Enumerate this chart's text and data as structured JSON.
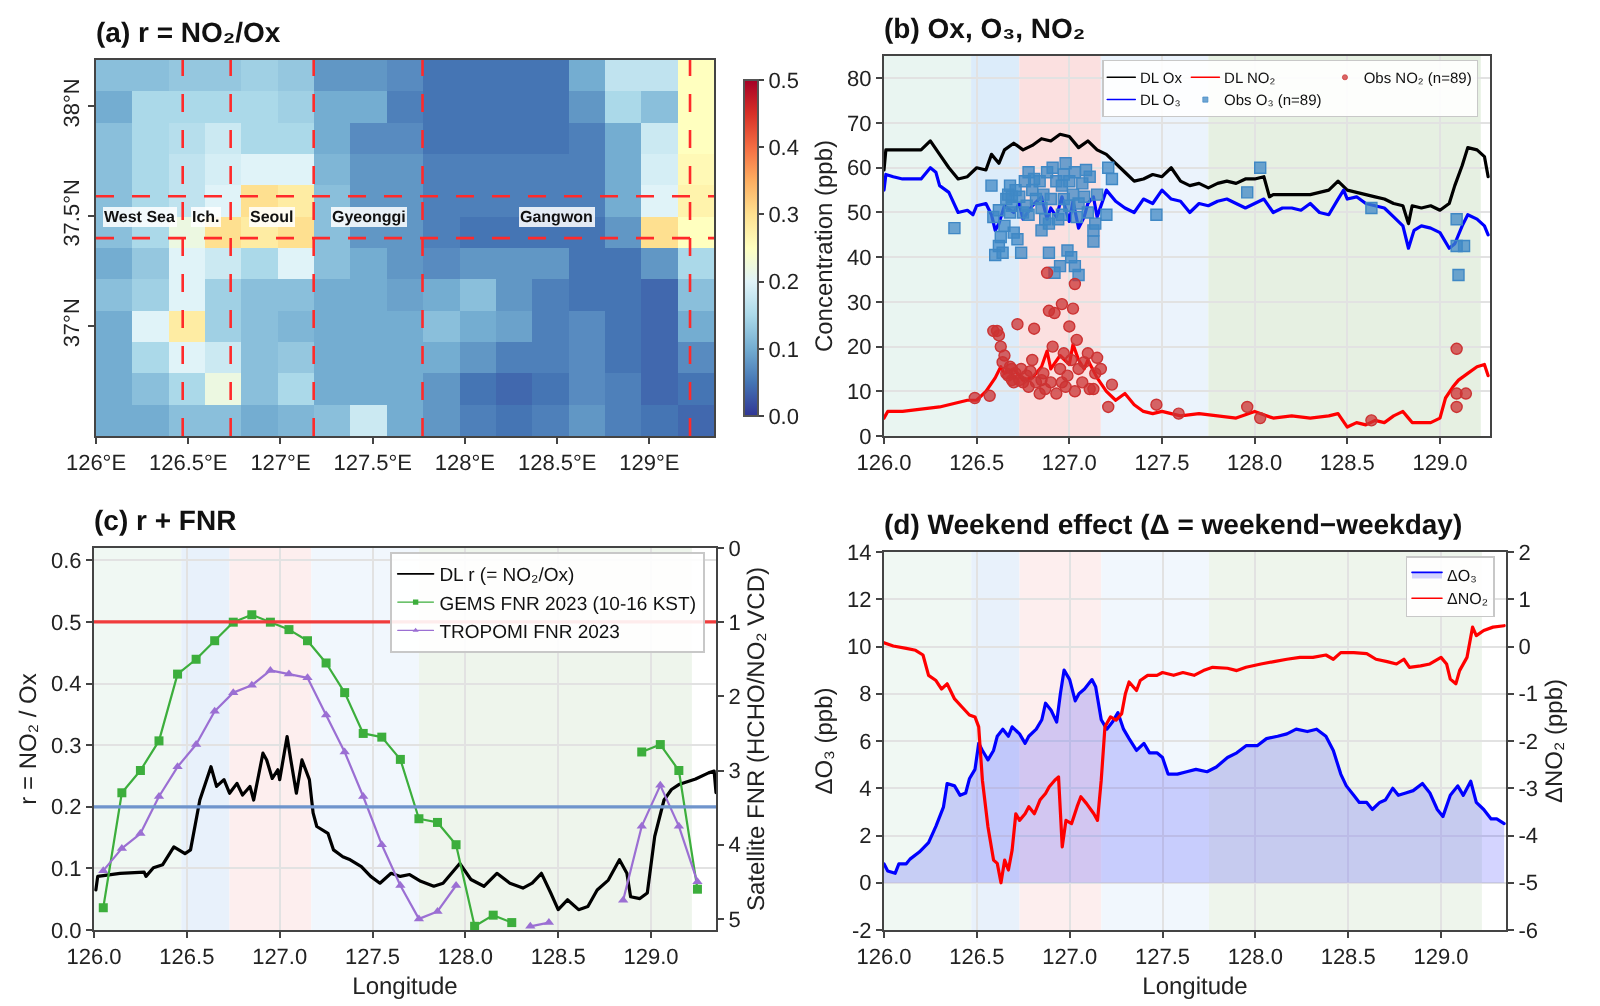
{
  "chart_data": [
    {
      "type": "heatmap",
      "title": "(a) r = NO₂/Ox",
      "cells": [
        [
          0.12,
          0.12,
          0.13,
          0.13,
          0.14,
          0.13,
          0.08,
          0.08,
          0.07,
          0.05,
          0.05,
          0.05,
          0.05,
          0.1,
          0.17,
          0.17,
          0.25
        ],
        [
          0.1,
          0.15,
          0.15,
          0.15,
          0.15,
          0.14,
          0.1,
          0.1,
          0.06,
          0.05,
          0.05,
          0.05,
          0.05,
          0.08,
          0.15,
          0.12,
          0.25
        ],
        [
          0.12,
          0.15,
          0.16,
          0.18,
          0.15,
          0.15,
          0.1,
          0.07,
          0.07,
          0.05,
          0.05,
          0.05,
          0.05,
          0.06,
          0.1,
          0.18,
          0.25
        ],
        [
          0.12,
          0.15,
          0.17,
          0.19,
          0.2,
          0.2,
          0.11,
          0.08,
          0.08,
          0.06,
          0.06,
          0.06,
          0.06,
          0.06,
          0.1,
          0.19,
          0.26
        ],
        [
          0.12,
          0.15,
          0.17,
          0.2,
          0.3,
          0.28,
          0.12,
          0.08,
          0.08,
          0.06,
          0.06,
          0.06,
          0.06,
          0.06,
          0.1,
          0.2,
          0.27
        ],
        [
          0.12,
          0.15,
          0.22,
          0.3,
          0.28,
          0.3,
          0.12,
          0.08,
          0.08,
          0.06,
          0.05,
          0.05,
          0.05,
          0.05,
          0.08,
          0.3,
          0.25
        ],
        [
          0.1,
          0.13,
          0.2,
          0.18,
          0.15,
          0.2,
          0.12,
          0.1,
          0.08,
          0.07,
          0.08,
          0.08,
          0.08,
          0.05,
          0.05,
          0.08,
          0.15
        ],
        [
          0.12,
          0.14,
          0.2,
          0.14,
          0.12,
          0.12,
          0.1,
          0.1,
          0.09,
          0.1,
          0.12,
          0.08,
          0.06,
          0.05,
          0.05,
          0.04,
          0.12
        ],
        [
          0.1,
          0.2,
          0.28,
          0.14,
          0.12,
          0.11,
          0.1,
          0.1,
          0.1,
          0.12,
          0.1,
          0.09,
          0.06,
          0.07,
          0.05,
          0.04,
          0.1
        ],
        [
          0.1,
          0.15,
          0.2,
          0.18,
          0.12,
          0.13,
          0.1,
          0.1,
          0.1,
          0.1,
          0.08,
          0.06,
          0.06,
          0.07,
          0.05,
          0.04,
          0.07
        ],
        [
          0.1,
          0.12,
          0.15,
          0.22,
          0.12,
          0.15,
          0.1,
          0.1,
          0.1,
          0.08,
          0.05,
          0.04,
          0.05,
          0.07,
          0.06,
          0.04,
          0.05
        ],
        [
          0.1,
          0.1,
          0.12,
          0.12,
          0.1,
          0.11,
          0.12,
          0.18,
          0.1,
          0.08,
          0.06,
          0.05,
          0.06,
          0.08,
          0.06,
          0.05,
          0.04
        ]
      ],
      "xlim": [
        126.0,
        129.35
      ],
      "ylim": [
        36.5,
        38.21
      ],
      "xticks": [
        {
          "value": 126,
          "label": "126°E"
        },
        {
          "value": 126.5,
          "label": "126.5°E"
        },
        {
          "value": 127,
          "label": "127°E"
        },
        {
          "value": 127.5,
          "label": "127.5°E"
        },
        {
          "value": 128,
          "label": "128°E"
        },
        {
          "value": 128.5,
          "label": "128.5°E"
        },
        {
          "value": 129,
          "label": "129°E"
        }
      ],
      "yticks": [
        {
          "value": 37,
          "label": "37°N"
        },
        {
          "value": 37.5,
          "label": "37.5°N"
        },
        {
          "value": 38,
          "label": "38°N"
        }
      ],
      "clim": [
        0,
        0.5
      ],
      "cticks": [
        {
          "value": 0,
          "label": "0.0"
        },
        0.1,
        0.2,
        0.3,
        0.4,
        0.5
      ],
      "ref_lines": [
        {
          "axis": "x",
          "value": 126.47,
          "color": "#ff2a2a",
          "line_style": "dashed"
        },
        {
          "axis": "x",
          "value": 126.73,
          "color": "#ff2a2a",
          "line_style": "dashed"
        },
        {
          "axis": "x",
          "value": 127.18,
          "color": "#ff2a2a",
          "line_style": "dashed"
        },
        {
          "axis": "x",
          "value": 127.77,
          "color": "#ff2a2a",
          "line_style": "dashed"
        },
        {
          "axis": "x",
          "value": 129.22,
          "color": "#ff2a2a",
          "line_style": "dashed"
        },
        {
          "axis": "y",
          "value": 37.4,
          "color": "#ff2a2a",
          "line_style": "dashed"
        },
        {
          "axis": "y",
          "value": 37.59,
          "color": "#ff2a2a",
          "line_style": "dashed"
        }
      ],
      "annotations": [
        "West Sea",
        "Ich.",
        "Seoul",
        "Gyeonggi",
        "Gangwon"
      ]
    },
    {
      "type": "line",
      "title": "(b) Ox, O₃, NO₂",
      "ylabel": "Concentration (ppb)",
      "xlim": [
        126.0,
        129.27
      ],
      "ylim": [
        0,
        85
      ],
      "xticks": [
        {
          "value": 126,
          "label": "126.0"
        },
        126.5,
        {
          "value": 127,
          "label": "127.0"
        },
        127.5,
        {
          "value": 128,
          "label": "128.0"
        },
        128.5,
        {
          "value": 129,
          "label": "129.0"
        }
      ],
      "yticks": [
        0,
        10,
        20,
        30,
        40,
        50,
        60,
        70,
        80
      ],
      "grid": true,
      "legend": "top right",
      "bands": [
        {
          "axis": "x",
          "from": 126.0,
          "to": 126.47,
          "color": "#e9f5f1"
        },
        {
          "axis": "x",
          "from": 126.47,
          "to": 126.73,
          "color": "#dcecfa"
        },
        {
          "axis": "x",
          "from": 126.73,
          "to": 127.17,
          "color": "#fbe0e0"
        },
        {
          "axis": "x",
          "from": 127.17,
          "to": 127.75,
          "color": "#ebf3fc"
        },
        {
          "axis": "x",
          "from": 127.75,
          "to": 129.22,
          "color": "#e6f0e2"
        }
      ],
      "series": [
        {
          "name": "DL Ox",
          "color": "#000000",
          "x": [
            126.0,
            126.01,
            126.1,
            126.2,
            126.25,
            126.3,
            126.35,
            126.4,
            126.45,
            126.5,
            126.55,
            126.58,
            126.62,
            126.65,
            126.7,
            126.75,
            126.8,
            126.85,
            126.9,
            126.95,
            127.0,
            127.05,
            127.1,
            127.15,
            127.2,
            127.25,
            127.3,
            127.35,
            127.4,
            127.45,
            127.5,
            127.55,
            127.6,
            127.65,
            127.7,
            127.75,
            127.8,
            127.85,
            127.9,
            127.95,
            128.0,
            128.05,
            128.08,
            128.1,
            128.2,
            128.3,
            128.4,
            128.45,
            128.5,
            128.55,
            128.6,
            128.65,
            128.7,
            128.75,
            128.8,
            128.83,
            128.85,
            128.9,
            128.95,
            129.0,
            129.05,
            129.08,
            129.12,
            129.15,
            129.2,
            129.24,
            129.26
          ],
          "values": [
            59.5,
            64,
            64,
            64,
            66,
            63,
            60,
            57.5,
            58,
            60,
            59.5,
            63,
            61,
            64,
            65.5,
            64,
            65,
            66.5,
            66,
            67.5,
            67,
            64.5,
            66,
            64,
            63,
            61,
            59,
            57,
            57.5,
            58.5,
            58,
            60,
            57,
            56,
            56.5,
            55.5,
            56.5,
            57,
            56.5,
            57.5,
            57.5,
            58,
            53.5,
            54,
            54,
            54,
            55,
            57,
            55,
            54.5,
            54,
            53.5,
            53,
            52,
            51.5,
            47.5,
            51.5,
            51,
            51.5,
            50.5,
            52,
            56,
            60.5,
            64.5,
            64,
            62.5,
            58
          ]
        },
        {
          "name": "DL O₃",
          "color": "#0000ff",
          "x": [
            126.0,
            126.01,
            126.05,
            126.1,
            126.2,
            126.25,
            126.28,
            126.3,
            126.35,
            126.4,
            126.45,
            126.48,
            126.5,
            126.55,
            126.58,
            126.6,
            126.62,
            126.65,
            126.7,
            126.73,
            126.75,
            126.8,
            126.85,
            126.88,
            126.9,
            126.93,
            126.96,
            127.0,
            127.02,
            127.05,
            127.08,
            127.1,
            127.13,
            127.15,
            127.2,
            127.25,
            127.3,
            127.35,
            127.4,
            127.45,
            127.5,
            127.55,
            127.6,
            127.65,
            127.7,
            127.75,
            127.8,
            127.85,
            127.9,
            127.95,
            128.0,
            128.05,
            128.1,
            128.15,
            128.2,
            128.25,
            128.3,
            128.35,
            128.4,
            128.45,
            128.48,
            128.5,
            128.55,
            128.6,
            128.65,
            128.7,
            128.75,
            128.8,
            128.83,
            128.86,
            128.9,
            128.95,
            129.0,
            129.05,
            129.08,
            129.12,
            129.15,
            129.2,
            129.24,
            129.26
          ],
          "values": [
            55,
            58.5,
            58,
            57.5,
            57.5,
            60,
            59,
            56,
            54.5,
            50,
            50.5,
            49.5,
            51.5,
            52,
            49.5,
            46,
            47.5,
            51.5,
            50,
            52,
            48.5,
            51.5,
            53.5,
            48.5,
            51,
            49,
            53.5,
            48,
            52.5,
            46.5,
            49,
            52,
            53.5,
            49,
            55,
            52.5,
            51,
            50,
            53,
            52,
            55,
            53,
            52.5,
            50,
            52,
            51.5,
            52.5,
            53,
            52,
            51,
            52,
            53,
            50,
            51,
            51,
            50.5,
            52,
            50,
            49.5,
            53,
            55,
            53,
            53.5,
            52,
            51.5,
            51,
            49,
            47,
            42,
            46,
            47,
            46.5,
            45.5,
            42,
            43,
            47,
            49.5,
            48.5,
            47,
            45
          ]
        },
        {
          "name": "DL NO₂",
          "color": "#ff0000",
          "x": [
            126.0,
            126.02,
            126.1,
            126.2,
            126.3,
            126.4,
            126.45,
            126.5,
            126.55,
            126.6,
            126.63,
            126.65,
            126.7,
            126.75,
            126.8,
            126.85,
            126.88,
            126.9,
            126.95,
            127.0,
            127.02,
            127.05,
            127.08,
            127.1,
            127.15,
            127.2,
            127.25,
            127.3,
            127.35,
            127.4,
            127.45,
            127.5,
            127.6,
            127.7,
            127.8,
            127.9,
            128.0,
            128.1,
            128.2,
            128.3,
            128.4,
            128.45,
            128.5,
            128.55,
            128.6,
            128.65,
            128.7,
            128.75,
            128.8,
            128.83,
            128.85,
            128.9,
            128.95,
            129.0,
            129.03,
            129.07,
            129.1,
            129.15,
            129.2,
            129.24,
            129.26
          ],
          "values": [
            4,
            5.5,
            5.5,
            6,
            6.5,
            7.5,
            8,
            8,
            10,
            13,
            15.5,
            14,
            15,
            12.5,
            13,
            15.5,
            19,
            15,
            18,
            16,
            20.5,
            17,
            15,
            17,
            13,
            10,
            8,
            9.5,
            7,
            5.5,
            5,
            5.5,
            4.5,
            5,
            4.5,
            4,
            5.5,
            4,
            4.5,
            4,
            4.5,
            5,
            2,
            3,
            2.5,
            3.5,
            3,
            4.5,
            5.5,
            4,
            3,
            3,
            3,
            4,
            8.5,
            11,
            12.5,
            14,
            15.5,
            16,
            13.5
          ]
        },
        {
          "name": "Obs O₃ (n=89)",
          "type": "scatter",
          "marker": "square",
          "color": "#3f88c5",
          "x": [
            126.38,
            126.58,
            126.59,
            126.6,
            126.62,
            126.63,
            126.64,
            126.65,
            126.66,
            126.67,
            126.68,
            126.69,
            126.69,
            126.7,
            126.71,
            126.72,
            126.73,
            126.74,
            126.75,
            126.77,
            126.78,
            126.78,
            126.8,
            126.82,
            126.84,
            126.85,
            126.86,
            126.87,
            126.88,
            126.89,
            126.9,
            126.91,
            126.92,
            126.93,
            126.94,
            126.95,
            126.96,
            126.97,
            126.97,
            126.98,
            126.99,
            127.0,
            127.0,
            127.01,
            127.02,
            127.03,
            127.03,
            127.04,
            127.05,
            127.05,
            127.07,
            127.08,
            127.1,
            127.11,
            127.13,
            127.13,
            127.14,
            127.15,
            127.2,
            127.21,
            127.23,
            127.47,
            128.03,
            127.96,
            128.63,
            129.09,
            129.09,
            129.1,
            129.13,
            126.68,
            126.76,
            126.81,
            126.85,
            126.96,
            127.09,
            126.89,
            126.62
          ],
          "values": [
            46.5,
            56,
            49,
            40.5,
            42.5,
            44.5,
            41,
            47,
            53,
            54,
            56,
            53.5,
            51.5,
            45.5,
            55,
            44,
            53.5,
            41,
            50,
            51.5,
            59,
            49.5,
            55,
            53,
            57,
            51,
            54,
            48.5,
            59,
            41,
            53,
            60,
            36.5,
            57,
            48.5,
            38,
            56,
            53,
            58.5,
            61,
            41.5,
            51.5,
            57,
            40,
            54,
            59,
            38,
            49,
            36,
            52,
            56.5,
            53.5,
            50,
            58,
            43.5,
            46,
            47.5,
            54,
            49.5,
            60,
            57.5,
            49.5,
            60,
            54.5,
            51,
            48.5,
            42.5,
            36,
            42.5,
            50,
            57,
            57.5,
            46,
            49.5,
            59.5,
            47.5,
            50.5
          ]
        },
        {
          "name": "Obs NO₂ (n=89)",
          "type": "scatter",
          "marker": "circle",
          "color": "#cc3333",
          "x": [
            126.49,
            126.57,
            126.59,
            126.61,
            126.62,
            126.63,
            126.64,
            126.65,
            126.66,
            126.67,
            126.68,
            126.69,
            126.69,
            126.7,
            126.71,
            126.72,
            126.73,
            126.74,
            126.75,
            126.77,
            126.78,
            126.79,
            126.8,
            126.81,
            126.82,
            126.84,
            126.85,
            126.86,
            126.87,
            126.88,
            126.89,
            126.9,
            126.91,
            126.92,
            126.93,
            126.95,
            126.96,
            126.96,
            126.97,
            126.98,
            126.99,
            127.0,
            127.01,
            127.02,
            127.03,
            127.03,
            127.04,
            127.05,
            127.07,
            127.08,
            127.1,
            127.11,
            127.13,
            127.14,
            127.15,
            127.17,
            127.21,
            127.23,
            127.47,
            127.59,
            127.96,
            128.03,
            128.63,
            129.09,
            129.09,
            129.09,
            129.14
          ],
          "values": [
            8.5,
            9,
            23.5,
            23.5,
            22.5,
            20,
            16.5,
            18,
            14,
            13.5,
            15.5,
            12.5,
            15,
            12,
            14,
            25,
            12.5,
            15,
            12,
            13.5,
            11,
            14.5,
            17,
            24,
            12,
            9.5,
            12.5,
            14,
            10.5,
            36.5,
            28,
            12,
            20,
            27.5,
            9.5,
            15,
            12,
            29.5,
            18.5,
            11,
            13.5,
            24.5,
            17,
            28.5,
            34,
            10,
            21.5,
            15,
            12,
            16.5,
            18.5,
            10.5,
            10.5,
            14,
            17.5,
            15,
            6.5,
            11.5,
            7,
            5,
            6.5,
            4,
            3.5,
            19.5,
            9.5,
            6.5,
            9.5
          ]
        }
      ]
    },
    {
      "type": "line",
      "title": "(c) r + FNR",
      "xlabel": "Longitude",
      "ylabel": "r = NO₂ / Ox",
      "y2label": "Satellite FNR (HCHO/NO₂ VCD)",
      "xlim": [
        126.0,
        129.35
      ],
      "ylim": [
        0,
        0.62
      ],
      "y2lim": [
        5.15,
        0
      ],
      "xticks": [
        {
          "value": 126,
          "label": "126.0"
        },
        126.5,
        {
          "value": 127,
          "label": "127.0"
        },
        127.5,
        {
          "value": 128,
          "label": "128.0"
        },
        128.5,
        {
          "value": 129,
          "label": "129.0"
        }
      ],
      "yticks": [
        {
          "value": 0,
          "label": "0.0"
        },
        0.1,
        0.2,
        0.3,
        0.4,
        0.5,
        0.6
      ],
      "y2ticks": [
        0,
        1,
        2,
        3,
        4,
        5
      ],
      "grid": true,
      "legend": "top right",
      "bands": [
        {
          "axis": "x",
          "from": 126.0,
          "to": 126.47,
          "color": "#f0f8f3"
        },
        {
          "axis": "x",
          "from": 126.47,
          "to": 126.73,
          "color": "#e8f1fb"
        },
        {
          "axis": "x",
          "from": 126.73,
          "to": 127.17,
          "color": "#fdeeee"
        },
        {
          "axis": "x",
          "from": 127.17,
          "to": 127.75,
          "color": "#f1f7fd"
        },
        {
          "axis": "x",
          "from": 127.75,
          "to": 129.22,
          "color": "#eef5ec"
        }
      ],
      "ref_lines": [
        {
          "axis": "y",
          "value": 0.5,
          "color": "#f03c3c"
        },
        {
          "axis": "y",
          "value": 0.2,
          "color": "#6f94cc"
        }
      ],
      "series": [
        {
          "name": "DL r (= NO₂/Ox)",
          "color": "#000000",
          "x": [
            126.01,
            126.02,
            126.14,
            126.27,
            126.28,
            126.32,
            126.37,
            126.43,
            126.49,
            126.52,
            126.57,
            126.63,
            126.66,
            126.7,
            126.73,
            126.77,
            126.8,
            126.84,
            126.86,
            126.91,
            126.93,
            126.96,
            126.99,
            127.0,
            127.04,
            127.06,
            127.09,
            127.12,
            127.16,
            127.18,
            127.2,
            127.26,
            127.29,
            127.34,
            127.38,
            127.44,
            127.49,
            127.54,
            127.6,
            127.65,
            127.7,
            127.76,
            127.83,
            127.88,
            127.97,
            128.03,
            128.1,
            128.17,
            128.24,
            128.31,
            128.36,
            128.41,
            128.46,
            128.5,
            128.55,
            128.61,
            128.66,
            128.71,
            128.77,
            128.83,
            128.87,
            128.89,
            128.94,
            128.98,
            129.02,
            129.07,
            129.11,
            129.15,
            129.24,
            129.31,
            129.34,
            129.35
          ],
          "values": [
            0.065,
            0.087,
            0.092,
            0.094,
            0.087,
            0.101,
            0.106,
            0.135,
            0.124,
            0.13,
            0.211,
            0.265,
            0.233,
            0.244,
            0.222,
            0.238,
            0.219,
            0.233,
            0.211,
            0.287,
            0.276,
            0.246,
            0.26,
            0.244,
            0.314,
            0.276,
            0.222,
            0.276,
            0.244,
            0.19,
            0.168,
            0.157,
            0.13,
            0.119,
            0.114,
            0.103,
            0.087,
            0.076,
            0.092,
            0.087,
            0.09,
            0.079,
            0.071,
            0.076,
            0.108,
            0.082,
            0.071,
            0.092,
            0.076,
            0.068,
            0.076,
            0.092,
            0.06,
            0.033,
            0.049,
            0.033,
            0.038,
            0.065,
            0.081,
            0.114,
            0.092,
            0.054,
            0.051,
            0.06,
            0.152,
            0.211,
            0.228,
            0.236,
            0.245,
            0.255,
            0.258,
            0.223
          ]
        },
        {
          "name": "GEMS FNR 2023 (10-16 KST)",
          "color": "#3cae3c",
          "marker": "square",
          "axis": "y2",
          "x": [
            126.05,
            126.15,
            126.25,
            126.35,
            126.45,
            126.55,
            126.65,
            126.75,
            126.85,
            126.95,
            127.05,
            127.15,
            127.25,
            127.35,
            127.45,
            127.55,
            127.65,
            127.75,
            127.85,
            127.95,
            128.05,
            128.15,
            128.25,
            128.35,
            128.45,
            128.55,
            128.65,
            128.75,
            128.85,
            128.95,
            129.05,
            129.15,
            129.25
          ],
          "values": [
            4.85,
            3.3,
            3.0,
            2.6,
            1.7,
            1.5,
            1.25,
            1.0,
            0.9,
            1.0,
            1.1,
            1.25,
            1.55,
            1.95,
            2.5,
            2.55,
            2.85,
            3.65,
            3.7,
            4.0,
            5.1,
            4.95,
            5.05,
            null,
            null,
            null,
            null,
            null,
            null,
            2.75,
            2.65,
            3.0,
            4.6
          ]
        },
        {
          "name": "TROPOMI FNR 2023",
          "color": "#9b6fd3",
          "marker": "triangle",
          "axis": "y2",
          "x": [
            126.05,
            126.15,
            126.25,
            126.35,
            126.45,
            126.55,
            126.65,
            126.75,
            126.85,
            126.95,
            127.05,
            127.15,
            127.25,
            127.35,
            127.45,
            127.55,
            127.65,
            127.75,
            127.85,
            127.95,
            128.05,
            128.15,
            128.25,
            128.35,
            128.45,
            128.55,
            128.65,
            128.75,
            128.85,
            128.95,
            129.05,
            129.15,
            129.25
          ],
          "values": [
            4.35,
            4.05,
            3.85,
            3.35,
            2.95,
            2.65,
            2.2,
            1.95,
            1.85,
            1.65,
            1.7,
            1.75,
            2.25,
            2.75,
            3.35,
            4.0,
            4.55,
            5.0,
            4.9,
            4.55,
            null,
            null,
            null,
            5.1,
            5.05,
            null,
            null,
            null,
            4.75,
            3.75,
            3.2,
            3.75,
            4.5
          ]
        }
      ]
    },
    {
      "type": "line",
      "title": "(d) Weekend effect (Δ = weekend−weekday)",
      "xlabel": "Longitude",
      "ylabel": "ΔO₃ (ppb)",
      "y2label": "ΔNO₂ (ppb)",
      "xlim": [
        126.0,
        129.35
      ],
      "ylim": [
        -2,
        14
      ],
      "y2lim": [
        -6,
        2
      ],
      "xticks": [
        {
          "value": 126,
          "label": "126.0"
        },
        126.5,
        {
          "value": 127,
          "label": "127.0"
        },
        127.5,
        {
          "value": 128,
          "label": "128.0"
        },
        128.5,
        {
          "value": 129,
          "label": "129.0"
        }
      ],
      "yticks": [
        -2,
        0,
        2,
        4,
        6,
        8,
        10,
        12,
        14
      ],
      "y2ticks": [
        -6,
        -5,
        -4,
        -3,
        -2,
        -1,
        0,
        1,
        2
      ],
      "grid": true,
      "legend": "top right",
      "bands": [
        {
          "axis": "x",
          "from": 126.0,
          "to": 126.47,
          "color": "#f0f8f3"
        },
        {
          "axis": "x",
          "from": 126.47,
          "to": 126.73,
          "color": "#e8f1fb"
        },
        {
          "axis": "x",
          "from": 126.73,
          "to": 127.17,
          "color": "#fdeeee"
        },
        {
          "axis": "x",
          "from": 127.17,
          "to": 127.75,
          "color": "#f1f7fd"
        },
        {
          "axis": "x",
          "from": 127.75,
          "to": 129.22,
          "color": "#eef5ec"
        }
      ],
      "series": [
        {
          "name": "ΔO₃",
          "type": "area",
          "color": "#0000ff",
          "x": [
            126.0,
            126.02,
            126.06,
            126.08,
            126.12,
            126.14,
            126.19,
            126.24,
            126.28,
            126.32,
            126.34,
            126.38,
            126.41,
            126.44,
            126.46,
            126.49,
            126.51,
            126.53,
            126.56,
            126.59,
            126.61,
            126.64,
            126.67,
            126.69,
            126.73,
            126.76,
            126.78,
            126.82,
            126.85,
            126.87,
            126.9,
            126.93,
            126.95,
            126.97,
            127.0,
            127.03,
            127.05,
            127.08,
            127.12,
            127.14,
            127.17,
            127.2,
            127.23,
            127.26,
            127.29,
            127.32,
            127.36,
            127.4,
            127.43,
            127.47,
            127.5,
            127.53,
            127.58,
            127.63,
            127.68,
            127.74,
            127.79,
            127.85,
            127.9,
            127.95,
            128.01,
            128.06,
            128.12,
            128.17,
            128.22,
            128.28,
            128.33,
            128.38,
            128.42,
            128.46,
            128.49,
            128.53,
            128.56,
            128.6,
            128.63,
            128.67,
            128.7,
            128.74,
            128.77,
            128.81,
            128.85,
            128.9,
            128.94,
            128.98,
            129.01,
            129.05,
            129.09,
            129.12,
            129.16,
            129.19,
            129.23,
            129.27,
            129.3,
            129.34
          ],
          "values": [
            0.8,
            0.5,
            0.4,
            0.8,
            0.8,
            1.0,
            1.3,
            1.7,
            2.4,
            3.2,
            4.2,
            4.1,
            3.7,
            3.8,
            4.4,
            4.8,
            5.9,
            5.6,
            5.2,
            5.6,
            6.2,
            6.5,
            6.2,
            6.6,
            6.3,
            5.9,
            6.2,
            6.5,
            6.9,
            7.6,
            7.3,
            6.8,
            8.0,
            9.0,
            8.6,
            7.7,
            8.0,
            8.2,
            8.6,
            8.3,
            6.9,
            6.5,
            6.8,
            7.2,
            6.5,
            6.1,
            5.6,
            5.9,
            5.5,
            5.5,
            5.3,
            4.6,
            4.6,
            4.7,
            4.8,
            4.7,
            4.9,
            5.3,
            5.5,
            5.8,
            5.8,
            6.1,
            6.2,
            6.3,
            6.5,
            6.4,
            6.5,
            6.2,
            5.6,
            4.6,
            4.1,
            3.7,
            3.4,
            3.4,
            3.1,
            3.4,
            3.5,
            4.0,
            3.7,
            3.8,
            3.9,
            4.2,
            3.8,
            3.1,
            2.8,
            3.7,
            4.1,
            3.7,
            4.3,
            3.4,
            3.1,
            2.7,
            2.7,
            2.5
          ]
        },
        {
          "name": "ΔNO₂",
          "color": "#ff0000",
          "axis": "y2",
          "x": [
            126.0,
            126.05,
            126.12,
            126.17,
            126.21,
            126.24,
            126.28,
            126.31,
            126.34,
            126.38,
            126.42,
            126.46,
            126.49,
            126.51,
            126.53,
            126.56,
            126.59,
            126.61,
            126.63,
            126.65,
            126.67,
            126.69,
            126.71,
            126.73,
            126.76,
            126.78,
            126.81,
            126.84,
            126.87,
            126.89,
            126.92,
            126.94,
            126.96,
            126.98,
            127.01,
            127.04,
            127.06,
            127.09,
            127.13,
            127.15,
            127.17,
            127.19,
            127.22,
            127.25,
            127.28,
            127.3,
            127.32,
            127.36,
            127.38,
            127.42,
            127.47,
            127.5,
            127.56,
            127.61,
            127.67,
            127.72,
            127.77,
            127.85,
            127.9,
            127.95,
            128.03,
            128.1,
            128.17,
            128.24,
            128.31,
            128.38,
            128.42,
            128.46,
            128.53,
            128.6,
            128.65,
            128.71,
            128.76,
            128.8,
            128.83,
            128.89,
            128.94,
            129.0,
            129.03,
            129.05,
            129.08,
            129.1,
            129.14,
            129.17,
            129.19,
            129.23,
            129.28,
            129.34
          ],
          "values": [
            0.08,
            0.01,
            -0.04,
            -0.08,
            -0.18,
            -0.61,
            -0.72,
            -0.9,
            -0.79,
            -1.11,
            -1.28,
            -1.45,
            -1.49,
            -1.7,
            -2.83,
            -3.82,
            -4.52,
            -4.59,
            -5.0,
            -4.52,
            -4.73,
            -4.31,
            -3.54,
            -3.68,
            -3.54,
            -3.39,
            -3.54,
            -3.25,
            -3.11,
            -2.97,
            -2.83,
            -2.76,
            -4.24,
            -3.68,
            -3.75,
            -3.39,
            -3.18,
            -3.32,
            -3.54,
            -3.68,
            -2.83,
            -1.7,
            -1.49,
            -1.56,
            -1.42,
            -1.0,
            -0.75,
            -0.93,
            -0.72,
            -0.61,
            -0.61,
            -0.55,
            -0.61,
            -0.55,
            -0.61,
            -0.51,
            -0.44,
            -0.46,
            -0.51,
            -0.44,
            -0.37,
            -0.32,
            -0.27,
            -0.23,
            -0.23,
            -0.18,
            -0.27,
            -0.13,
            -0.13,
            -0.15,
            -0.27,
            -0.32,
            -0.37,
            -0.27,
            -0.44,
            -0.41,
            -0.37,
            -0.23,
            -0.37,
            -0.69,
            -0.79,
            -0.51,
            -0.23,
            0.41,
            0.23,
            0.34,
            0.41,
            0.44
          ]
        }
      ]
    }
  ]
}
